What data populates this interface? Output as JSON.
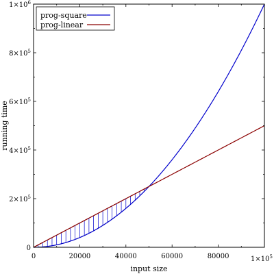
{
  "chart_data": {
    "type": "line",
    "title": "",
    "xlabel": "input size",
    "ylabel": "running time",
    "xlim": [
      0,
      100000
    ],
    "ylim": [
      0,
      1000000
    ],
    "x_ticks": [
      0,
      20000,
      40000,
      60000,
      80000,
      100000
    ],
    "x_tick_labels": [
      "0",
      "20000",
      "40000",
      "60000",
      "80000",
      ""
    ],
    "x_axis_exponent": {
      "base": "1×10",
      "exp": "5"
    },
    "y_ticks": [
      0,
      200000,
      400000,
      600000,
      800000,
      1000000
    ],
    "y_tick_labels": [
      {
        "base": "0",
        "exp": ""
      },
      {
        "base": "2×10",
        "exp": "5"
      },
      {
        "base": "4×10",
        "exp": "5"
      },
      {
        "base": "6×10",
        "exp": "5"
      },
      {
        "base": "8×10",
        "exp": "5"
      },
      {
        "base": "1×10",
        "exp": "6"
      }
    ],
    "grid": false,
    "legend_position": "top-left",
    "series": [
      {
        "name": "prog-square",
        "formula": "x^2/10000",
        "color": "#0000cc",
        "x_range": [
          0,
          100000
        ]
      },
      {
        "name": "prog-linear",
        "formula": "5x",
        "color": "#8b0000",
        "x_range": [
          0,
          100000
        ]
      }
    ],
    "shaded_region": {
      "between": [
        "prog-square",
        "prog-linear"
      ],
      "x_range": [
        0,
        50000
      ],
      "hatch_color": "#0000cc",
      "hatch_step": 2000
    }
  }
}
